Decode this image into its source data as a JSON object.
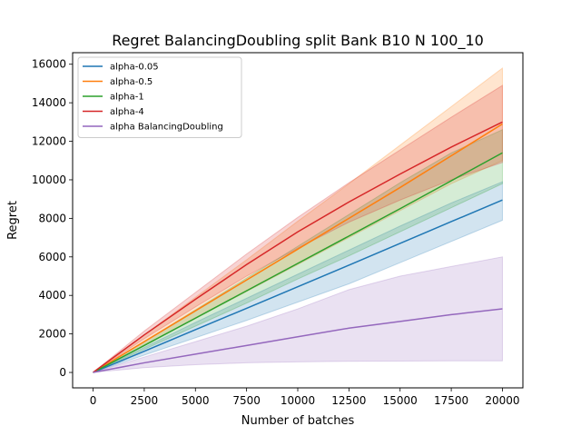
{
  "chart_data": {
    "type": "line",
    "title": "Regret BalancingDoubling split Bank B10 N 100_10",
    "xlabel": "Number of batches",
    "ylabel": "Regret",
    "xlim": [
      -1000,
      21000
    ],
    "ylim": [
      -800,
      16600
    ],
    "xticks": [
      0,
      2500,
      5000,
      7500,
      10000,
      12500,
      15000,
      17500,
      20000
    ],
    "yticks": [
      0,
      2000,
      4000,
      6000,
      8000,
      10000,
      12000,
      14000,
      16000
    ],
    "grid": false,
    "legend_position": "top-left",
    "x": [
      0,
      2500,
      5000,
      7500,
      10000,
      12500,
      15000,
      17500,
      20000
    ],
    "series": [
      {
        "name": "alpha-0.05",
        "color": "#1f77b4",
        "values": [
          0,
          1100,
          2220,
          3330,
          4450,
          5570,
          6700,
          7830,
          8950
        ],
        "lower": [
          0,
          900,
          1800,
          2700,
          3650,
          4600,
          5700,
          6800,
          7900
        ],
        "upper": [
          0,
          1300,
          2600,
          3850,
          5100,
          6350,
          7600,
          8800,
          9900
        ]
      },
      {
        "name": "alpha-0.5",
        "color": "#ff7f0e",
        "values": [
          0,
          1600,
          3200,
          4800,
          6400,
          8000,
          9600,
          11250,
          12900
        ],
        "lower": [
          0,
          1400,
          2800,
          4200,
          5600,
          7000,
          8400,
          9800,
          11000
        ],
        "upper": [
          0,
          1950,
          3900,
          5850,
          7850,
          9800,
          11800,
          13800,
          15800
        ]
      },
      {
        "name": "alpha-1",
        "color": "#2ca02c",
        "values": [
          0,
          1400,
          2820,
          4240,
          5660,
          7080,
          8500,
          9950,
          11400
        ],
        "lower": [
          0,
          1200,
          2400,
          3600,
          4850,
          6050,
          7300,
          8550,
          9800
        ],
        "upper": [
          0,
          1600,
          3250,
          4900,
          6550,
          8200,
          9850,
          11400,
          12600
        ]
      },
      {
        "name": "alpha-4",
        "color": "#d62728",
        "values": [
          0,
          1950,
          3800,
          5600,
          7300,
          8850,
          10300,
          11700,
          13000
        ],
        "lower": [
          0,
          1750,
          3400,
          5000,
          6450,
          7800,
          8950,
          10000,
          10900
        ],
        "upper": [
          0,
          2150,
          4150,
          6150,
          8050,
          9850,
          11550,
          13250,
          14900
        ]
      },
      {
        "name": "alpha BalancingDoubling",
        "color": "#9467bd",
        "values": [
          0,
          500,
          950,
          1400,
          1850,
          2300,
          2650,
          3000,
          3300
        ],
        "lower": [
          0,
          250,
          400,
          500,
          550,
          580,
          590,
          600,
          600
        ],
        "upper": [
          0,
          800,
          1600,
          2400,
          3300,
          4300,
          5000,
          5500,
          6000
        ]
      }
    ]
  }
}
